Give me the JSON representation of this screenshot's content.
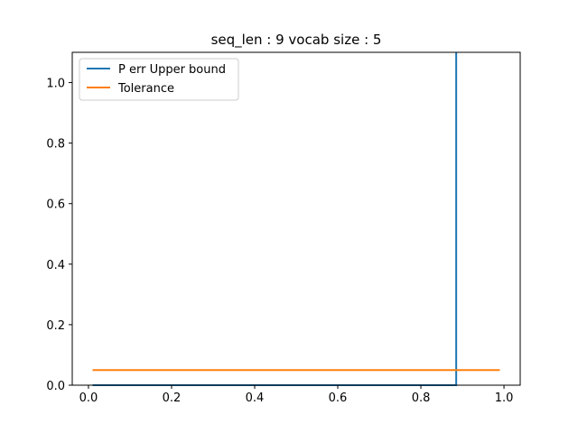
{
  "chart_data": {
    "type": "line",
    "title": "seq_len : 9 vocab size : 5",
    "xlabel": "",
    "ylabel": "",
    "xlim": [
      -0.039,
      1.039
    ],
    "ylim": [
      0.0,
      1.1
    ],
    "xticks": [
      0.0,
      0.2,
      0.4,
      0.6,
      0.8,
      1.0
    ],
    "xtick_labels": [
      "0.0",
      "0.2",
      "0.4",
      "0.6",
      "0.8",
      "1.0"
    ],
    "yticks": [
      0.0,
      0.2,
      0.4,
      0.6,
      0.8,
      1.0
    ],
    "ytick_labels": [
      "0.0",
      "0.2",
      "0.4",
      "0.6",
      "0.8",
      "1.0"
    ],
    "grid": false,
    "legend_position": "upper-left",
    "series": [
      {
        "name": "P err Upper bound",
        "color": "#1f77b4",
        "x": [
          0.01,
          0.885,
          0.885,
          0.885
        ],
        "y": [
          0.0,
          0.0,
          0.05,
          1.1
        ]
      },
      {
        "name": "Tolerance",
        "color": "#ff7f0e",
        "x": [
          0.01,
          0.99
        ],
        "y": [
          0.05,
          0.05
        ]
      }
    ]
  }
}
